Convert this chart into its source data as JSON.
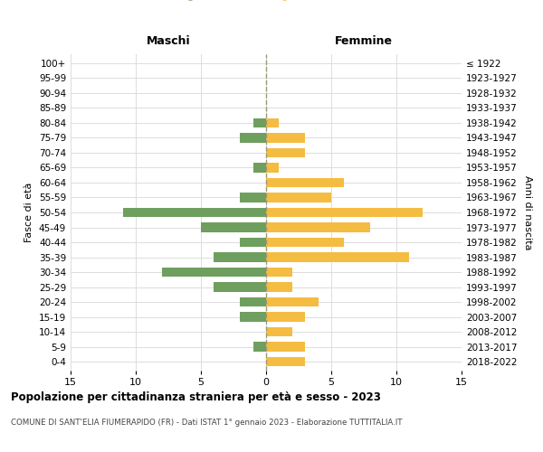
{
  "age_groups": [
    "0-4",
    "5-9",
    "10-14",
    "15-19",
    "20-24",
    "25-29",
    "30-34",
    "35-39",
    "40-44",
    "45-49",
    "50-54",
    "55-59",
    "60-64",
    "65-69",
    "70-74",
    "75-79",
    "80-84",
    "85-89",
    "90-94",
    "95-99",
    "100+"
  ],
  "birth_years": [
    "2018-2022",
    "2013-2017",
    "2008-2012",
    "2003-2007",
    "1998-2002",
    "1993-1997",
    "1988-1992",
    "1983-1987",
    "1978-1982",
    "1973-1977",
    "1968-1972",
    "1963-1967",
    "1958-1962",
    "1953-1957",
    "1948-1952",
    "1943-1947",
    "1938-1942",
    "1933-1937",
    "1928-1932",
    "1923-1927",
    "≤ 1922"
  ],
  "males": [
    0,
    1,
    0,
    2,
    2,
    4,
    8,
    4,
    2,
    5,
    11,
    2,
    0,
    1,
    0,
    2,
    1,
    0,
    0,
    0,
    0
  ],
  "females": [
    3,
    3,
    2,
    3,
    4,
    2,
    2,
    11,
    6,
    8,
    12,
    5,
    6,
    1,
    3,
    3,
    1,
    0,
    0,
    0,
    0
  ],
  "color_males": "#6e9f5e",
  "color_females": "#f5bc42",
  "title_main": "Popolazione per cittadinanza straniera per età e sesso - 2023",
  "title_sub": "COMUNE DI SANT'ELIA FIUMERAPIDO (FR) - Dati ISTAT 1° gennaio 2023 - Elaborazione TUTTITALIA.IT",
  "label_maschi": "Maschi",
  "label_femmine": "Femmine",
  "label_fasce": "Fasce di età",
  "label_anni": "Anni di nascita",
  "xlim": 15,
  "background_color": "#ffffff",
  "grid_color": "#dddddd",
  "dashed_line_color": "#999977"
}
